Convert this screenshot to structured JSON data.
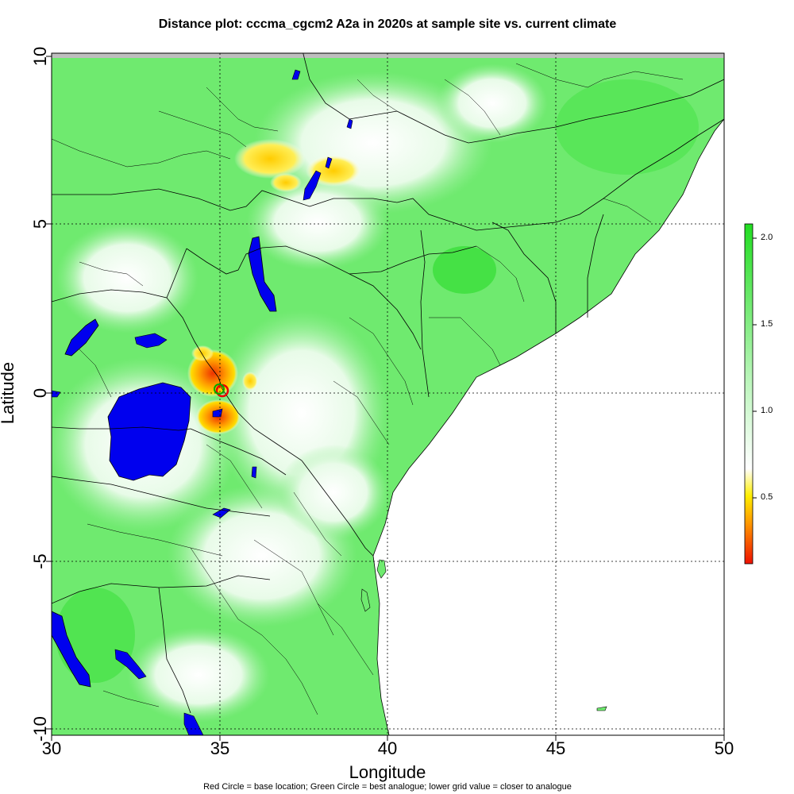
{
  "title": "Distance plot: cccma_cgcm2 A2a in 2020s at sample site vs. current climate",
  "x_axis_label": "Longitude",
  "y_axis_label": "Latitude",
  "caption": "Red Circle = base location; Green Circle = best analogue; lower grid value = closer to analogue",
  "x_ticks": [
    "30",
    "35",
    "40",
    "45",
    "50"
  ],
  "y_ticks": [
    "10",
    "5",
    "0",
    "-5",
    "-10"
  ],
  "legend": {
    "ticks": [
      "2.0",
      "1.5",
      "1.0",
      "0.5"
    ],
    "colors": {
      "high": "#22dd22",
      "mid": "#ffffff",
      "low_yellow": "#ffee00",
      "low_red": "#ee1100"
    }
  },
  "colors": {
    "land_green": "#5ee85e",
    "water_blue": "#0000ee",
    "sea_white": "#ffffff",
    "nodata_gray": "#bebebe",
    "border": "#000000"
  },
  "chart_data": {
    "type": "heatmap",
    "xlim": [
      30,
      50
    ],
    "ylim": [
      -10,
      10
    ],
    "gridlines_x": [
      35,
      40,
      45
    ],
    "gridlines_y": [
      5,
      0,
      -5,
      -10
    ],
    "grid": true,
    "legend_range": [
      0.1,
      2.1
    ],
    "base_location": {
      "lon": 35.05,
      "lat": 0.05,
      "marker": "red-circle"
    },
    "best_analogue": {
      "lon": 35.0,
      "lat": 0.1,
      "marker": "green-circle"
    }
  }
}
